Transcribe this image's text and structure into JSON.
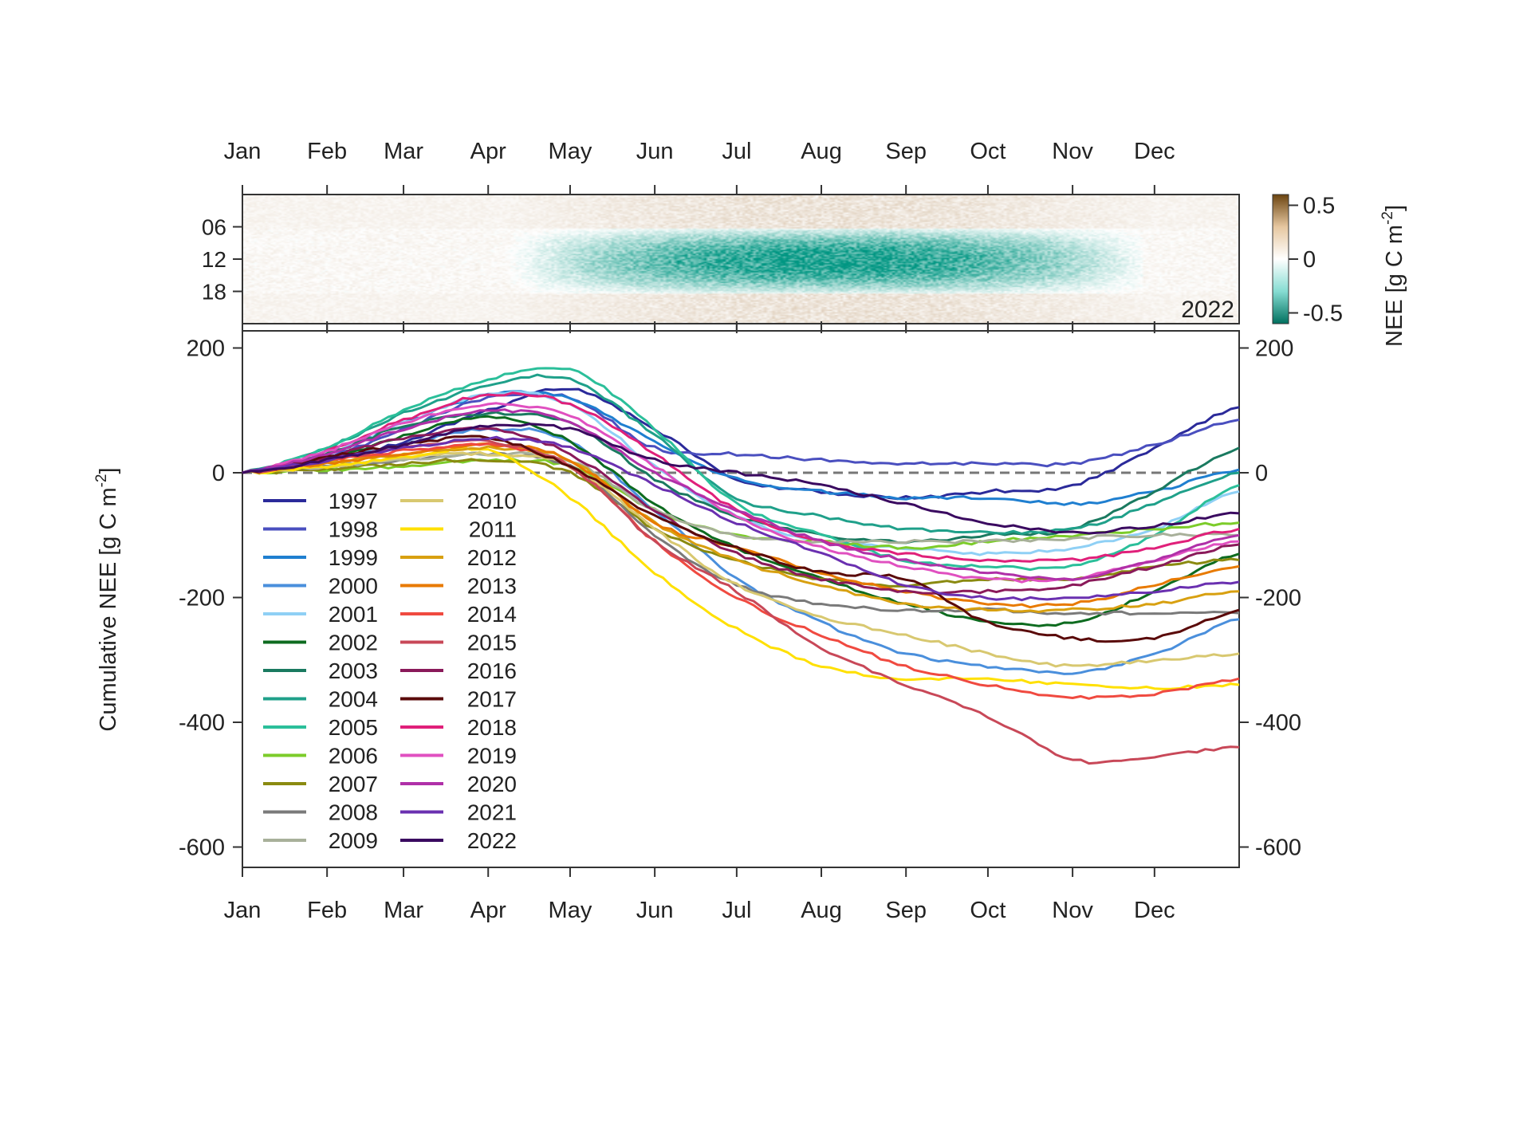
{
  "chart_data": [
    {
      "type": "heatmap",
      "year_label": "2022",
      "x_tick_labels": [
        "Jan",
        "Feb",
        "Mar",
        "Apr",
        "May",
        "Jun",
        "Jul",
        "Aug",
        "Sep",
        "Oct",
        "Nov",
        "Dec"
      ],
      "y_tick_labels": [
        "06",
        "12",
        "18"
      ],
      "y_ticks": [
        6,
        12,
        18
      ],
      "yrange_hours": [
        0,
        24
      ],
      "colorbar": {
        "label": "NEE [g C m",
        "label_sup": "-2",
        "label_end": "]",
        "ticks": [
          0.5,
          0,
          -0.5
        ],
        "tick_labels": [
          "0.5",
          "0",
          "-0.5"
        ],
        "range": [
          -0.6,
          0.6
        ],
        "colors": {
          "high": "#6b4410",
          "mid_high": "#e6c7a0",
          "zero": "#ffffff",
          "mid_low": "#86dcd2",
          "low": "#00705f"
        }
      }
    },
    {
      "type": "line",
      "ylabel": "Cumulative NEE [g C m",
      "ylabel_sup": "-2",
      "ylabel_end": "]",
      "ylim": [
        -650,
        200
      ],
      "y_ticks": [
        200,
        0,
        -200,
        -400,
        -600
      ],
      "y_tick_labels": [
        "200",
        "0",
        "-200",
        "-400",
        "-600"
      ],
      "x_tick_labels": [
        "Jan",
        "Feb",
        "Mar",
        "Apr",
        "May",
        "Jun",
        "Jul",
        "Aug",
        "Sep",
        "Oct",
        "Nov",
        "Dec"
      ],
      "x_month_start_doy": [
        0,
        31,
        59,
        90,
        120,
        151,
        181,
        212,
        243,
        273,
        304,
        334
      ],
      "x_sample_doy": [
        0,
        31,
        59,
        90,
        120,
        151,
        181,
        212,
        243,
        273,
        304,
        334,
        365
      ],
      "reference_line": {
        "y": 0,
        "style": "dashed",
        "color": "#777777"
      },
      "legend_position": "bottom-left",
      "series": [
        {
          "name": "1997",
          "color": "#2b2a9a",
          "values": [
            0,
            20,
            50,
            100,
            135,
            70,
            -10,
            -30,
            -40,
            -30,
            -20,
            40,
            105
          ]
        },
        {
          "name": "1998",
          "color": "#4a4fbf",
          "values": [
            0,
            25,
            70,
            120,
            120,
            40,
            30,
            20,
            15,
            15,
            15,
            45,
            85
          ]
        },
        {
          "name": "1999",
          "color": "#1f7fd0",
          "values": [
            0,
            30,
            80,
            125,
            120,
            50,
            -10,
            -30,
            -40,
            -40,
            -50,
            -30,
            5
          ]
        },
        {
          "name": "2000",
          "color": "#4a8fdc",
          "values": [
            0,
            20,
            45,
            70,
            50,
            -60,
            -170,
            -240,
            -290,
            -310,
            -320,
            -290,
            -235
          ]
        },
        {
          "name": "2001",
          "color": "#8fd0f5",
          "values": [
            0,
            30,
            80,
            125,
            110,
            10,
            -70,
            -110,
            -120,
            -130,
            -120,
            -90,
            -30
          ]
        },
        {
          "name": "2002",
          "color": "#0d6b1f",
          "values": [
            0,
            20,
            60,
            90,
            50,
            -50,
            -120,
            -170,
            -210,
            -240,
            -240,
            -190,
            -130
          ]
        },
        {
          "name": "2003",
          "color": "#1a7a60",
          "values": [
            0,
            30,
            75,
            95,
            80,
            -10,
            -70,
            -100,
            -110,
            -100,
            -90,
            -30,
            40
          ]
        },
        {
          "name": "2004",
          "color": "#1fa08a",
          "values": [
            0,
            40,
            95,
            140,
            150,
            60,
            -40,
            -70,
            -90,
            -95,
            -90,
            -50,
            0
          ]
        },
        {
          "name": "2005",
          "color": "#2bbf9a",
          "values": [
            0,
            40,
            100,
            150,
            165,
            70,
            -50,
            -100,
            -140,
            -150,
            -150,
            -100,
            -20
          ]
        },
        {
          "name": "2006",
          "color": "#7ccc2a",
          "values": [
            0,
            5,
            10,
            20,
            10,
            -60,
            -100,
            -110,
            -120,
            -110,
            -100,
            -90,
            -80
          ]
        },
        {
          "name": "2007",
          "color": "#8a8a10",
          "values": [
            0,
            5,
            15,
            20,
            0,
            -90,
            -140,
            -170,
            -180,
            -170,
            -170,
            -150,
            -140
          ]
        },
        {
          "name": "2008",
          "color": "#7a7a7a",
          "values": [
            0,
            10,
            20,
            30,
            10,
            -100,
            -180,
            -210,
            -220,
            -220,
            -225,
            -225,
            -225
          ]
        },
        {
          "name": "2009",
          "color": "#a8b09a",
          "values": [
            0,
            10,
            20,
            30,
            20,
            -60,
            -100,
            -110,
            -110,
            -110,
            -105,
            -100,
            -100
          ]
        },
        {
          "name": "2010",
          "color": "#d8c870",
          "values": [
            0,
            10,
            25,
            30,
            10,
            -90,
            -180,
            -230,
            -260,
            -290,
            -310,
            -300,
            -290
          ]
        },
        {
          "name": "2011",
          "color": "#ffe000",
          "values": [
            0,
            10,
            25,
            35,
            -40,
            -160,
            -250,
            -310,
            -330,
            -330,
            -340,
            -345,
            -340
          ]
        },
        {
          "name": "2012",
          "color": "#d8a010",
          "values": [
            0,
            15,
            30,
            40,
            20,
            -80,
            -140,
            -180,
            -210,
            -220,
            -220,
            -210,
            -190
          ]
        },
        {
          "name": "2013",
          "color": "#e87a00",
          "values": [
            0,
            15,
            30,
            45,
            20,
            -80,
            -120,
            -160,
            -190,
            -210,
            -210,
            -180,
            -150
          ]
        },
        {
          "name": "2014",
          "color": "#f04a40",
          "values": [
            0,
            20,
            35,
            45,
            10,
            -110,
            -200,
            -260,
            -310,
            -340,
            -360,
            -355,
            -330
          ]
        },
        {
          "name": "2015",
          "color": "#c84858",
          "values": [
            0,
            20,
            40,
            50,
            10,
            -110,
            -190,
            -280,
            -340,
            -390,
            -460,
            -455,
            -440
          ]
        },
        {
          "name": "2016",
          "color": "#8a1a5a",
          "values": [
            0,
            25,
            55,
            70,
            30,
            -60,
            -130,
            -170,
            -190,
            -190,
            -180,
            -150,
            -115
          ]
        },
        {
          "name": "2017",
          "color": "#5a0a0a",
          "values": [
            0,
            25,
            45,
            55,
            10,
            -70,
            -120,
            -160,
            -170,
            -240,
            -265,
            -265,
            -220
          ]
        },
        {
          "name": "2018",
          "color": "#e0207a",
          "values": [
            0,
            35,
            85,
            125,
            110,
            30,
            -60,
            -110,
            -130,
            -140,
            -140,
            -120,
            -90
          ]
        },
        {
          "name": "2019",
          "color": "#e050c0",
          "values": [
            0,
            35,
            80,
            110,
            90,
            10,
            -70,
            -120,
            -150,
            -170,
            -170,
            -140,
            -110
          ]
        },
        {
          "name": "2020",
          "color": "#b030a8",
          "values": [
            0,
            30,
            70,
            100,
            80,
            0,
            -60,
            -110,
            -140,
            -160,
            -170,
            -140,
            -100
          ]
        },
        {
          "name": "2021",
          "color": "#6a30b0",
          "values": [
            0,
            20,
            40,
            55,
            40,
            -20,
            -80,
            -130,
            -180,
            -200,
            -200,
            -190,
            -175
          ]
        },
        {
          "name": "2022",
          "color": "#3a0a60",
          "values": [
            0,
            20,
            45,
            75,
            70,
            20,
            0,
            -20,
            -50,
            -80,
            -95,
            -85,
            -65
          ]
        }
      ]
    }
  ]
}
